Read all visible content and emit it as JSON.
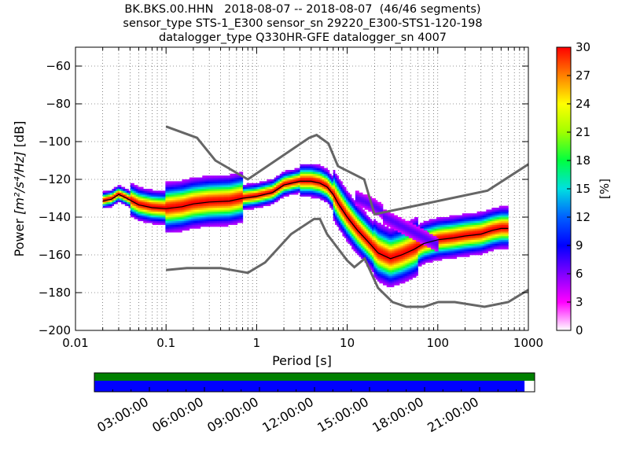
{
  "title": {
    "line1": "BK.BKS.00.HHN   2018-08-07 -- 2018-08-07  (46/46 segments)",
    "line2": "sensor_type STS-1_E300 sensor_sn 29220_E300-STS1-120-198",
    "line3": "datalogger_type Q330HR-GFE datalogger_sn 4007"
  },
  "chart_data": {
    "type": "heatmap",
    "xlabel": "Period [s]",
    "ylabel_prefix": "Power ",
    "ylabel_units": "[m²/s⁴/Hz]",
    "ylabel_suffix": " [dB]",
    "x_scale": "log",
    "xlim": [
      0.01,
      1000
    ],
    "ylim": [
      -200,
      -50
    ],
    "x_ticks": [
      0.01,
      0.1,
      1,
      10,
      100,
      1000
    ],
    "x_tick_labels": [
      "0.01",
      "0.1",
      "1",
      "10",
      "100",
      "1000"
    ],
    "y_ticks": [
      -200,
      -180,
      -160,
      -140,
      -120,
      -100,
      -80,
      -60
    ],
    "y_tick_labels": [
      "−200",
      "−180",
      "−160",
      "−140",
      "−120",
      "−100",
      "−80",
      "−60"
    ],
    "grid": "dotted vertical lines at log subdivisions",
    "noise_model_color": "#666666",
    "high_noise_model": [
      [
        0.1,
        -92
      ],
      [
        0.22,
        -98
      ],
      [
        0.35,
        -110
      ],
      [
        0.8,
        -120
      ],
      [
        3.8,
        -98
      ],
      [
        4.6,
        -96.5
      ],
      [
        6.2,
        -101
      ],
      [
        7.9,
        -113
      ],
      [
        15.4,
        -120
      ],
      [
        20,
        -138.5
      ],
      [
        354,
        -126
      ],
      [
        1000,
        -112
      ]
    ],
    "low_noise_model": [
      [
        0.1,
        -168
      ],
      [
        0.17,
        -167
      ],
      [
        0.4,
        -167
      ],
      [
        0.8,
        -169.5
      ],
      [
        1.24,
        -164
      ],
      [
        2.4,
        -149
      ],
      [
        4.3,
        -141
      ],
      [
        5,
        -141
      ],
      [
        6,
        -149
      ],
      [
        10,
        -163
      ],
      [
        12,
        -166.5
      ],
      [
        15.6,
        -162
      ],
      [
        21.9,
        -177.5
      ],
      [
        31.6,
        -185
      ],
      [
        45,
        -187.5
      ],
      [
        70,
        -187.5
      ],
      [
        101,
        -185
      ],
      [
        154,
        -185
      ],
      [
        328,
        -187.5
      ],
      [
        600,
        -185
      ],
      [
        1000,
        -178.5
      ]
    ],
    "median_curve": [
      [
        0.02,
        -131.5
      ],
      [
        0.025,
        -130.5
      ],
      [
        0.03,
        -128
      ],
      [
        0.035,
        -129.5
      ],
      [
        0.05,
        -133.5
      ],
      [
        0.07,
        -135
      ],
      [
        0.1,
        -135.5
      ],
      [
        0.15,
        -134.5
      ],
      [
        0.2,
        -133
      ],
      [
        0.3,
        -132
      ],
      [
        0.5,
        -131.5
      ],
      [
        0.7,
        -130
      ],
      [
        1,
        -129
      ],
      [
        1.5,
        -127
      ],
      [
        2,
        -123
      ],
      [
        3,
        -121
      ],
      [
        4,
        -121
      ],
      [
        5,
        -122
      ],
      [
        6,
        -124
      ],
      [
        7,
        -128
      ],
      [
        8,
        -133
      ],
      [
        10,
        -140
      ],
      [
        13,
        -147
      ],
      [
        17,
        -153
      ],
      [
        22,
        -159
      ],
      [
        30,
        -162
      ],
      [
        40,
        -160
      ],
      [
        55,
        -157
      ],
      [
        70,
        -154
      ],
      [
        100,
        -152
      ],
      [
        150,
        -151
      ],
      [
        200,
        -150
      ],
      [
        300,
        -149
      ],
      [
        400,
        -147
      ],
      [
        500,
        -146
      ],
      [
        600,
        -146
      ]
    ],
    "colorbar": {
      "label": "[%]",
      "min": 0,
      "max": 30,
      "tick_values": [
        0,
        3,
        6,
        9,
        12,
        15,
        18,
        21,
        24,
        27,
        30
      ],
      "tick_labels": [
        "0",
        "3",
        "6",
        "9",
        "12",
        "15",
        "18",
        "21",
        "24",
        "27",
        "30"
      ],
      "colors": [
        "#ffffff",
        "#ff00ff",
        "#8000ff",
        "#0000ff",
        "#0060ff",
        "#00e0e0",
        "#00ff40",
        "#a0ff00",
        "#ffff00",
        "#ff8000",
        "#ff0000"
      ]
    }
  },
  "coverage": {
    "data_fraction": 0.977,
    "data_color": "#0000ff",
    "gap_color": "#008000",
    "time_labels": [
      "03:00:00",
      "06:00:00",
      "09:00:00",
      "12:00:00",
      "15:00:00",
      "18:00:00",
      "21:00:00"
    ],
    "time_hours": [
      3,
      6,
      9,
      12,
      15,
      18,
      21
    ]
  }
}
